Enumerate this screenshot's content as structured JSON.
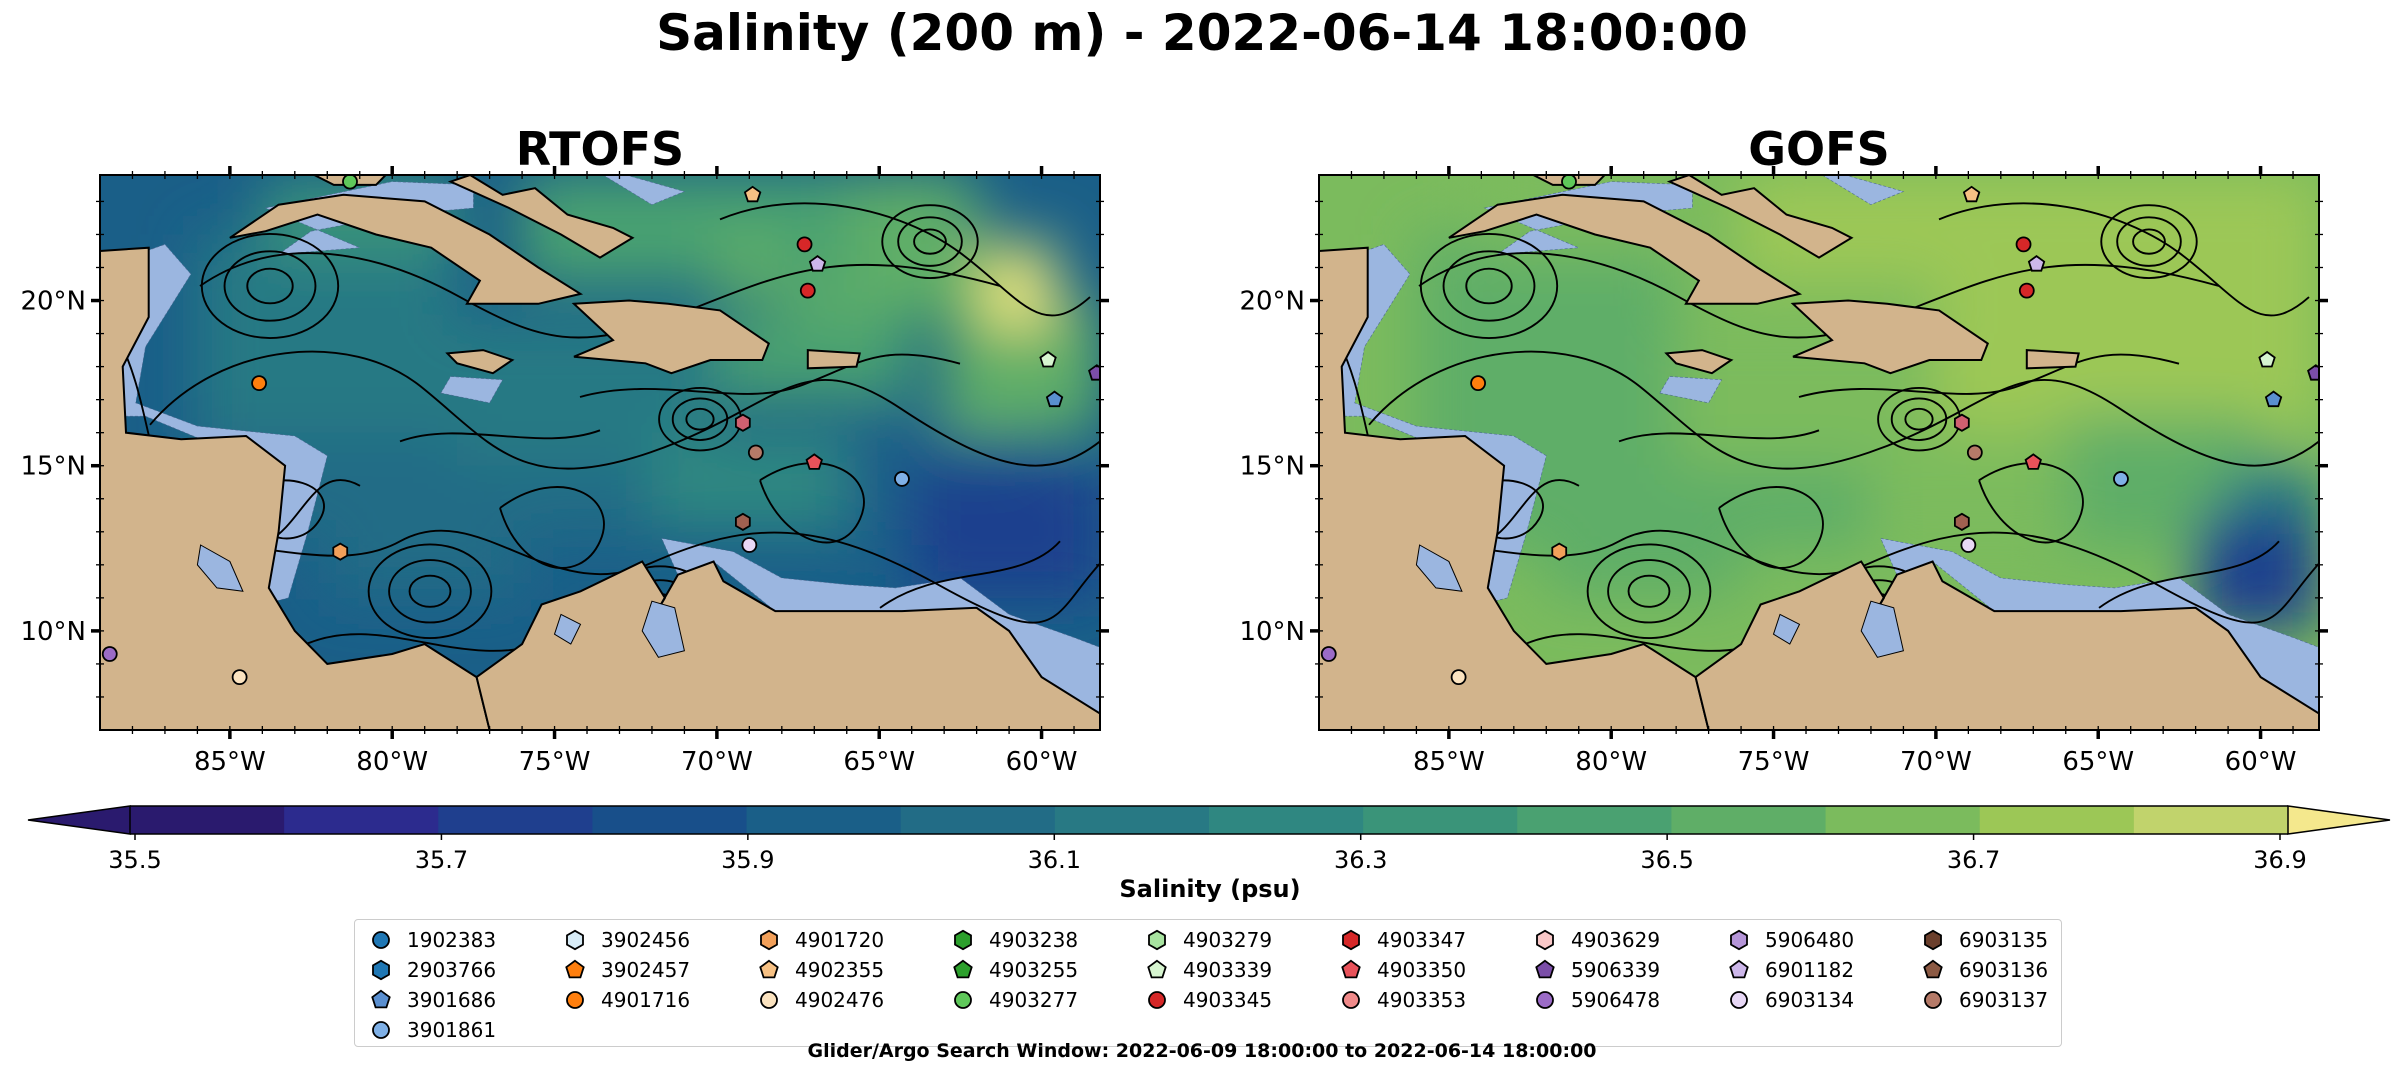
{
  "chart_data": {
    "type": "heatmap",
    "title": "Salinity (200 m) - 2022-06-14 18:00:00",
    "panels": [
      {
        "title": "RTOFS"
      },
      {
        "title": "GOFS"
      }
    ],
    "x_ticks": [
      "85°W",
      "80°W",
      "75°W",
      "70°W",
      "65°W",
      "60°W"
    ],
    "x_tick_values": [
      -85,
      -80,
      -75,
      -70,
      -65,
      -60
    ],
    "y_ticks": [
      "10°N",
      "15°N",
      "20°N"
    ],
    "y_tick_values": [
      10,
      15,
      20
    ],
    "xlim": [
      -89,
      -58.2
    ],
    "ylim": [
      7,
      23.8
    ],
    "colorbar": {
      "label": "Salinity (psu)",
      "range": [
        35.5,
        36.9
      ],
      "tick_labels": [
        "35.5",
        "35.7",
        "35.9",
        "36.1",
        "36.3",
        "36.5",
        "36.7",
        "36.9"
      ],
      "extend": "both",
      "colors": [
        "#2a1a6e",
        "#2c2b8e",
        "#1f3f8e",
        "#184f8a",
        "#1a5f88",
        "#226c86",
        "#287984",
        "#2f8781",
        "#3a9479",
        "#4aa171",
        "#5fae67",
        "#7bbb5d",
        "#9cc756",
        "#c1d36c",
        "#f4e88d"
      ]
    },
    "floats": [
      {
        "id": "1902383",
        "shape": "circle",
        "color": "#1f77b4",
        "lon": null,
        "lat": null
      },
      {
        "id": "2903766",
        "shape": "hexagon",
        "color": "#1f77b4",
        "lon": null,
        "lat": null
      },
      {
        "id": "3901686",
        "shape": "pentagon",
        "color": "#5a8fd0",
        "lon": -59.6,
        "lat": 17.0
      },
      {
        "id": "3901861",
        "shape": "circle",
        "color": "#7fb0e6",
        "lon": -64.3,
        "lat": 14.6
      },
      {
        "id": "3902456",
        "shape": "hexagon",
        "color": "#d8ecf7",
        "lon": null,
        "lat": null
      },
      {
        "id": "3902457",
        "shape": "pentagon",
        "color": "#ff7f0e",
        "lon": null,
        "lat": null
      },
      {
        "id": "4901716",
        "shape": "circle",
        "color": "#ff7f0e",
        "lon": -84.1,
        "lat": 17.5
      },
      {
        "id": "4901720",
        "shape": "hexagon",
        "color": "#f2a05a",
        "lon": -81.6,
        "lat": 12.4
      },
      {
        "id": "4902355",
        "shape": "pentagon",
        "color": "#f7c184",
        "lon": -68.9,
        "lat": 23.2
      },
      {
        "id": "4902476",
        "shape": "circle",
        "color": "#fbe3c0",
        "lon": -84.7,
        "lat": 8.6
      },
      {
        "id": "4903238",
        "shape": "hexagon",
        "color": "#2ca02c",
        "lon": null,
        "lat": null
      },
      {
        "id": "4903255",
        "shape": "pentagon",
        "color": "#2ca02c",
        "lon": null,
        "lat": null
      },
      {
        "id": "4903277",
        "shape": "circle",
        "color": "#5fc85a",
        "lon": -81.3,
        "lat": 23.6
      },
      {
        "id": "4903279",
        "shape": "hexagon",
        "color": "#a8e3a0",
        "lon": null,
        "lat": null
      },
      {
        "id": "4903339",
        "shape": "pentagon",
        "color": "#d7f5d0",
        "lon": -59.8,
        "lat": 18.2
      },
      {
        "id": "4903345",
        "shape": "circle",
        "color": "#d62728",
        "lon": -67.3,
        "lat": 21.7
      },
      {
        "id": "4903347",
        "shape": "hexagon",
        "color": "#d62728",
        "lon": null,
        "lat": null
      },
      {
        "id": "4903350",
        "shape": "pentagon",
        "color": "#e8525a",
        "lon": -67.0,
        "lat": 15.1
      },
      {
        "id": "4903353",
        "shape": "circle",
        "color": "#f08a8a",
        "lon": null,
        "lat": null
      },
      {
        "id": "4903629",
        "shape": "hexagon",
        "color": "#f9c8c8",
        "lon": null,
        "lat": null
      },
      {
        "id": "5906339",
        "shape": "pentagon",
        "color": "#7b4ea8",
        "lon": -58.3,
        "lat": 17.8
      },
      {
        "id": "5906478",
        "shape": "circle",
        "color": "#9b6bc6",
        "lon": -88.7,
        "lat": 9.3
      },
      {
        "id": "5906480",
        "shape": "hexagon",
        "color": "#b595d8",
        "lon": null,
        "lat": null
      },
      {
        "id": "6901182",
        "shape": "pentagon",
        "color": "#cdb7ea",
        "lon": -66.9,
        "lat": 21.1
      },
      {
        "id": "6903134",
        "shape": "circle",
        "color": "#e8d8f6",
        "lon": -69.0,
        "lat": 12.6
      },
      {
        "id": "6903135",
        "shape": "hexagon",
        "color": "#6b3f2c",
        "lon": null,
        "lat": null
      },
      {
        "id": "6903136",
        "shape": "pentagon",
        "color": "#8c5a44",
        "lon": null,
        "lat": null
      },
      {
        "id": "6903137",
        "shape": "circle",
        "color": "#b57a68",
        "lon": -68.8,
        "lat": 15.4
      }
    ],
    "extra_markers_unlabeled": [
      {
        "shape": "circle",
        "color": "#d62728",
        "lon": -67.2,
        "lat": 20.3
      },
      {
        "shape": "hexagon",
        "color": "#d06070",
        "lon": -69.2,
        "lat": 16.3
      },
      {
        "shape": "hexagon",
        "color": "#a06050",
        "lon": -69.2,
        "lat": 13.3
      }
    ],
    "footer": "Glider/Argo Search Window: 2022-06-09 18:00:00 to 2022-06-14 18:00:00"
  }
}
